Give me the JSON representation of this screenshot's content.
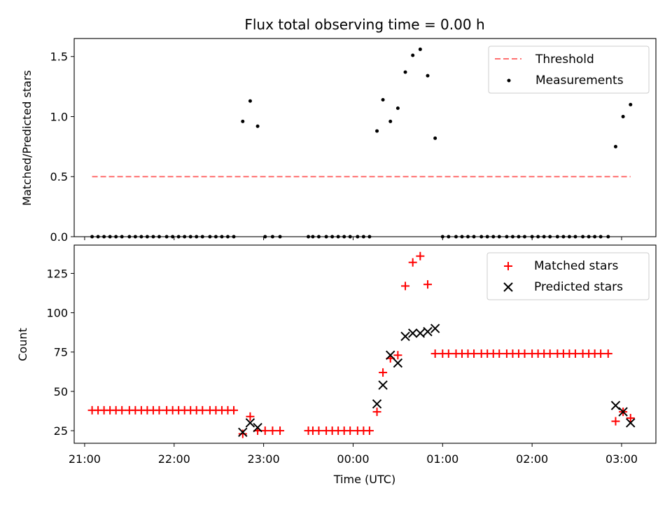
{
  "chart_data": [
    {
      "type": "scatter",
      "title": "Flux total observing time = 0.00 h",
      "ylabel": "Matched/Predicted stars",
      "xlim": [
        "20:53",
        "03:23"
      ],
      "ylim": [
        0,
        1.65
      ],
      "yticks": [
        "0.0",
        "0.5",
        "1.0",
        "1.5"
      ],
      "legend_position": "upper right",
      "series": [
        {
          "name": "Threshold",
          "kind": "dashed-line",
          "color": "#ff7070",
          "x": [
            "21:05",
            "03:06"
          ],
          "y": [
            0.5,
            0.5
          ]
        },
        {
          "name": "Measurements",
          "kind": "dots",
          "color": "#000000",
          "points": [
            [
              "21:05",
              0
            ],
            [
              "21:09",
              0
            ],
            [
              "21:13",
              0
            ],
            [
              "21:17",
              0
            ],
            [
              "21:21",
              0
            ],
            [
              "21:25",
              0
            ],
            [
              "21:30",
              0
            ],
            [
              "21:34",
              0
            ],
            [
              "21:38",
              0
            ],
            [
              "21:42",
              0
            ],
            [
              "21:46",
              0
            ],
            [
              "21:50",
              0
            ],
            [
              "21:55",
              0
            ],
            [
              "21:59",
              0
            ],
            [
              "22:03",
              0
            ],
            [
              "22:07",
              0
            ],
            [
              "22:11",
              0
            ],
            [
              "22:15",
              0
            ],
            [
              "22:19",
              0
            ],
            [
              "22:24",
              0
            ],
            [
              "22:28",
              0
            ],
            [
              "22:32",
              0
            ],
            [
              "22:36",
              0
            ],
            [
              "22:40",
              0
            ],
            [
              "22:46",
              0.96
            ],
            [
              "22:51",
              1.13
            ],
            [
              "22:56",
              0.92
            ],
            [
              "23:01",
              0
            ],
            [
              "23:06",
              0
            ],
            [
              "23:11",
              0
            ],
            [
              "23:30",
              0
            ],
            [
              "23:33",
              0
            ],
            [
              "23:37",
              0
            ],
            [
              "23:42",
              0
            ],
            [
              "23:46",
              0
            ],
            [
              "23:50",
              0
            ],
            [
              "23:54",
              0
            ],
            [
              "23:58",
              0
            ],
            [
              "00:03",
              0
            ],
            [
              "00:07",
              0
            ],
            [
              "00:11",
              0
            ],
            [
              "00:16",
              0.88
            ],
            [
              "00:20",
              1.14
            ],
            [
              "00:25",
              0.96
            ],
            [
              "00:30",
              1.07
            ],
            [
              "00:35",
              1.37
            ],
            [
              "00:40",
              1.51
            ],
            [
              "00:45",
              1.56
            ],
            [
              "00:50",
              1.34
            ],
            [
              "00:55",
              0.82
            ],
            [
              "01:00",
              0
            ],
            [
              "01:04",
              0
            ],
            [
              "01:09",
              0
            ],
            [
              "01:13",
              0
            ],
            [
              "01:17",
              0
            ],
            [
              "01:21",
              0
            ],
            [
              "01:26",
              0
            ],
            [
              "01:30",
              0
            ],
            [
              "01:34",
              0
            ],
            [
              "01:38",
              0
            ],
            [
              "01:43",
              0
            ],
            [
              "01:47",
              0
            ],
            [
              "01:51",
              0
            ],
            [
              "01:55",
              0
            ],
            [
              "02:00",
              0
            ],
            [
              "02:04",
              0
            ],
            [
              "02:08",
              0
            ],
            [
              "02:12",
              0
            ],
            [
              "02:17",
              0
            ],
            [
              "02:21",
              0
            ],
            [
              "02:25",
              0
            ],
            [
              "02:29",
              0
            ],
            [
              "02:34",
              0
            ],
            [
              "02:38",
              0
            ],
            [
              "02:42",
              0
            ],
            [
              "02:46",
              0
            ],
            [
              "02:51",
              0
            ],
            [
              "02:56",
              0.75
            ],
            [
              "03:01",
              1.0
            ],
            [
              "03:06",
              1.1
            ]
          ]
        }
      ]
    },
    {
      "type": "scatter",
      "title": "",
      "xlabel": "Time (UTC)",
      "ylabel": "Count",
      "xlim": [
        "20:53",
        "03:23"
      ],
      "ylim": [
        17,
        143
      ],
      "xticks": [
        "21:00",
        "22:00",
        "23:00",
        "00:00",
        "01:00",
        "02:00",
        "03:00"
      ],
      "yticks": [
        "25",
        "50",
        "75",
        "100",
        "125"
      ],
      "legend_position": "upper right",
      "series": [
        {
          "name": "Matched stars",
          "marker": "plus",
          "color": "#ff0000",
          "points": [
            [
              "21:05",
              38
            ],
            [
              "21:09",
              38
            ],
            [
              "21:13",
              38
            ],
            [
              "21:17",
              38
            ],
            [
              "21:21",
              38
            ],
            [
              "21:25",
              38
            ],
            [
              "21:30",
              38
            ],
            [
              "21:34",
              38
            ],
            [
              "21:38",
              38
            ],
            [
              "21:42",
              38
            ],
            [
              "21:46",
              38
            ],
            [
              "21:50",
              38
            ],
            [
              "21:55",
              38
            ],
            [
              "21:59",
              38
            ],
            [
              "22:03",
              38
            ],
            [
              "22:07",
              38
            ],
            [
              "22:11",
              38
            ],
            [
              "22:15",
              38
            ],
            [
              "22:19",
              38
            ],
            [
              "22:24",
              38
            ],
            [
              "22:28",
              38
            ],
            [
              "22:32",
              38
            ],
            [
              "22:36",
              38
            ],
            [
              "22:40",
              38
            ],
            [
              "22:46",
              23
            ],
            [
              "22:51",
              34
            ],
            [
              "22:56",
              25
            ],
            [
              "23:01",
              25
            ],
            [
              "23:06",
              25
            ],
            [
              "23:11",
              25
            ],
            [
              "23:30",
              25
            ],
            [
              "23:33",
              25
            ],
            [
              "23:37",
              25
            ],
            [
              "23:42",
              25
            ],
            [
              "23:46",
              25
            ],
            [
              "23:50",
              25
            ],
            [
              "23:54",
              25
            ],
            [
              "23:58",
              25
            ],
            [
              "00:03",
              25
            ],
            [
              "00:07",
              25
            ],
            [
              "00:11",
              25
            ],
            [
              "00:16",
              37
            ],
            [
              "00:20",
              62
            ],
            [
              "00:25",
              71
            ],
            [
              "00:30",
              73
            ],
            [
              "00:35",
              117
            ],
            [
              "00:40",
              132
            ],
            [
              "00:45",
              136
            ],
            [
              "00:50",
              118
            ],
            [
              "00:55",
              74
            ],
            [
              "01:00",
              74
            ],
            [
              "01:04",
              74
            ],
            [
              "01:09",
              74
            ],
            [
              "01:13",
              74
            ],
            [
              "01:17",
              74
            ],
            [
              "01:21",
              74
            ],
            [
              "01:26",
              74
            ],
            [
              "01:30",
              74
            ],
            [
              "01:34",
              74
            ],
            [
              "01:38",
              74
            ],
            [
              "01:43",
              74
            ],
            [
              "01:47",
              74
            ],
            [
              "01:51",
              74
            ],
            [
              "01:55",
              74
            ],
            [
              "02:00",
              74
            ],
            [
              "02:04",
              74
            ],
            [
              "02:08",
              74
            ],
            [
              "02:12",
              74
            ],
            [
              "02:17",
              74
            ],
            [
              "02:21",
              74
            ],
            [
              "02:25",
              74
            ],
            [
              "02:29",
              74
            ],
            [
              "02:34",
              74
            ],
            [
              "02:38",
              74
            ],
            [
              "02:42",
              74
            ],
            [
              "02:46",
              74
            ],
            [
              "02:51",
              74
            ],
            [
              "02:56",
              31
            ],
            [
              "03:01",
              37
            ],
            [
              "03:06",
              33
            ]
          ]
        },
        {
          "name": "Predicted stars",
          "marker": "x",
          "color": "#000000",
          "points": [
            [
              "22:46",
              24
            ],
            [
              "22:51",
              30
            ],
            [
              "22:56",
              27
            ],
            [
              "00:16",
              42
            ],
            [
              "00:20",
              54
            ],
            [
              "00:25",
              73
            ],
            [
              "00:30",
              68
            ],
            [
              "00:35",
              85
            ],
            [
              "00:40",
              87
            ],
            [
              "00:45",
              87
            ],
            [
              "00:50",
              88
            ],
            [
              "00:55",
              90
            ],
            [
              "02:56",
              41
            ],
            [
              "03:01",
              37
            ],
            [
              "03:06",
              30
            ]
          ]
        }
      ]
    }
  ]
}
